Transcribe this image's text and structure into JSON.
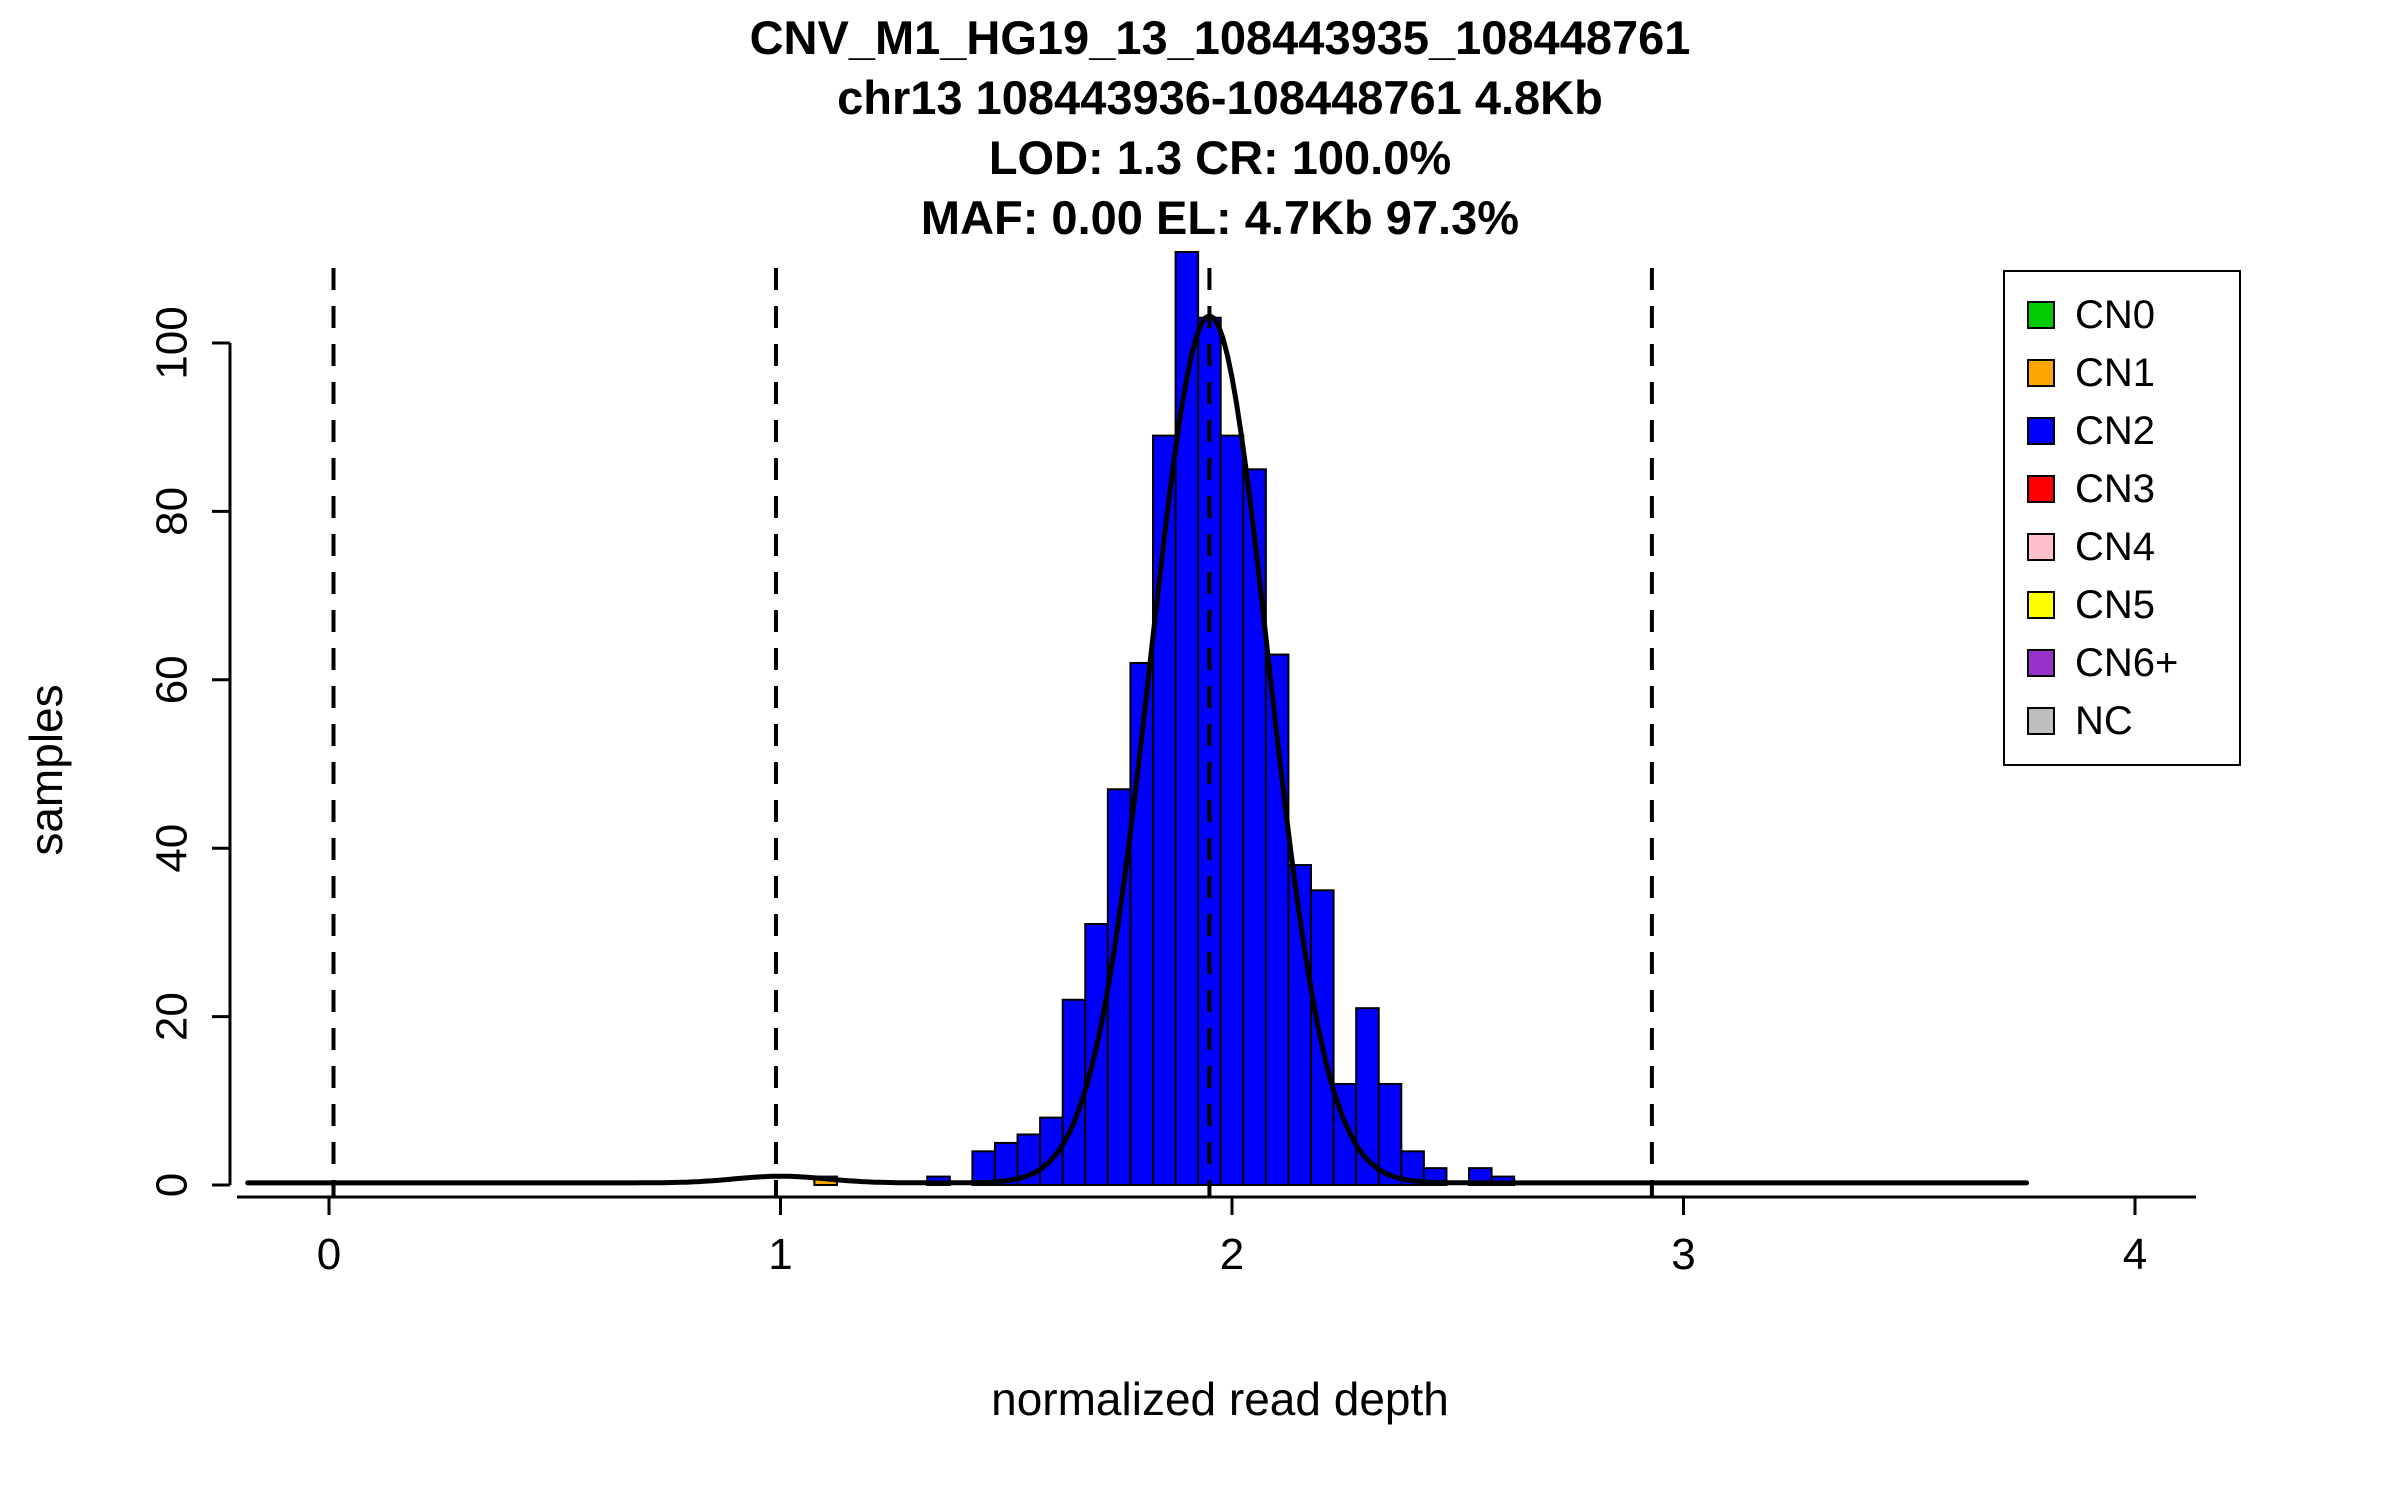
{
  "chart_data": {
    "type": "bar",
    "title": "CNV_M1_HG19_13_108443935_108448761",
    "subtitle_lines": [
      "chr13 108443936-108448761 4.8Kb",
      "LOD: 1.3 CR: 100.0%",
      "MAF: 0.00 EL: 4.7Kb 97.3%"
    ],
    "xlabel": "normalized read depth",
    "ylabel": "samples",
    "x_ticks": [
      0,
      1,
      2,
      3,
      4
    ],
    "y_ticks": [
      0,
      20,
      40,
      60,
      80,
      100
    ],
    "xlim": [
      -0.19,
      4.13
    ],
    "ylim": [
      0,
      110
    ],
    "grid": false,
    "legend_position": "top-right",
    "bin_width": 0.05,
    "bars": [
      {
        "x": 1.075,
        "count": 1,
        "cn": "CN1"
      },
      {
        "x": 1.325,
        "count": 1,
        "cn": "CN2"
      },
      {
        "x": 1.425,
        "count": 4,
        "cn": "CN2"
      },
      {
        "x": 1.475,
        "count": 5,
        "cn": "CN2"
      },
      {
        "x": 1.525,
        "count": 6,
        "cn": "CN2"
      },
      {
        "x": 1.575,
        "count": 8,
        "cn": "CN2"
      },
      {
        "x": 1.625,
        "count": 22,
        "cn": "CN2"
      },
      {
        "x": 1.675,
        "count": 31,
        "cn": "CN2"
      },
      {
        "x": 1.725,
        "count": 47,
        "cn": "CN2"
      },
      {
        "x": 1.775,
        "count": 62,
        "cn": "CN2"
      },
      {
        "x": 1.825,
        "count": 89,
        "cn": "CN2"
      },
      {
        "x": 1.875,
        "count": 111,
        "cn": "CN2"
      },
      {
        "x": 1.925,
        "count": 103,
        "cn": "CN2"
      },
      {
        "x": 1.975,
        "count": 89,
        "cn": "CN2"
      },
      {
        "x": 2.025,
        "count": 85,
        "cn": "CN2"
      },
      {
        "x": 2.075,
        "count": 63,
        "cn": "CN2"
      },
      {
        "x": 2.125,
        "count": 38,
        "cn": "CN2"
      },
      {
        "x": 2.175,
        "count": 35,
        "cn": "CN2"
      },
      {
        "x": 2.225,
        "count": 12,
        "cn": "CN2"
      },
      {
        "x": 2.275,
        "count": 21,
        "cn": "CN2"
      },
      {
        "x": 2.325,
        "count": 12,
        "cn": "CN2"
      },
      {
        "x": 2.375,
        "count": 4,
        "cn": "CN2"
      },
      {
        "x": 2.425,
        "count": 2,
        "cn": "CN2"
      },
      {
        "x": 2.525,
        "count": 2,
        "cn": "CN2"
      },
      {
        "x": 2.575,
        "count": 1,
        "cn": "CN2"
      }
    ],
    "dashed_lines_x": [
      0.01,
      0.99,
      1.95,
      2.93
    ],
    "density_curve": {
      "baseline": 0.25,
      "x_range": [
        -0.18,
        3.76
      ],
      "components": [
        {
          "mean": 1.95,
          "sd": 0.13,
          "peak": 103
        },
        {
          "mean": 1.0,
          "sd": 0.1,
          "peak": 0.8
        }
      ]
    },
    "legend": [
      {
        "label": "CN0",
        "color": "#00CC00"
      },
      {
        "label": "CN1",
        "color": "#FFA500"
      },
      {
        "label": "CN2",
        "color": "#0000FF"
      },
      {
        "label": "CN3",
        "color": "#FF0000"
      },
      {
        "label": "CN4",
        "color": "#FFC0CB"
      },
      {
        "label": "CN5",
        "color": "#FFFF00"
      },
      {
        "label": "CN6+",
        "color": "#9932CC"
      },
      {
        "label": "NC",
        "color": "#BEBEBE"
      }
    ]
  }
}
